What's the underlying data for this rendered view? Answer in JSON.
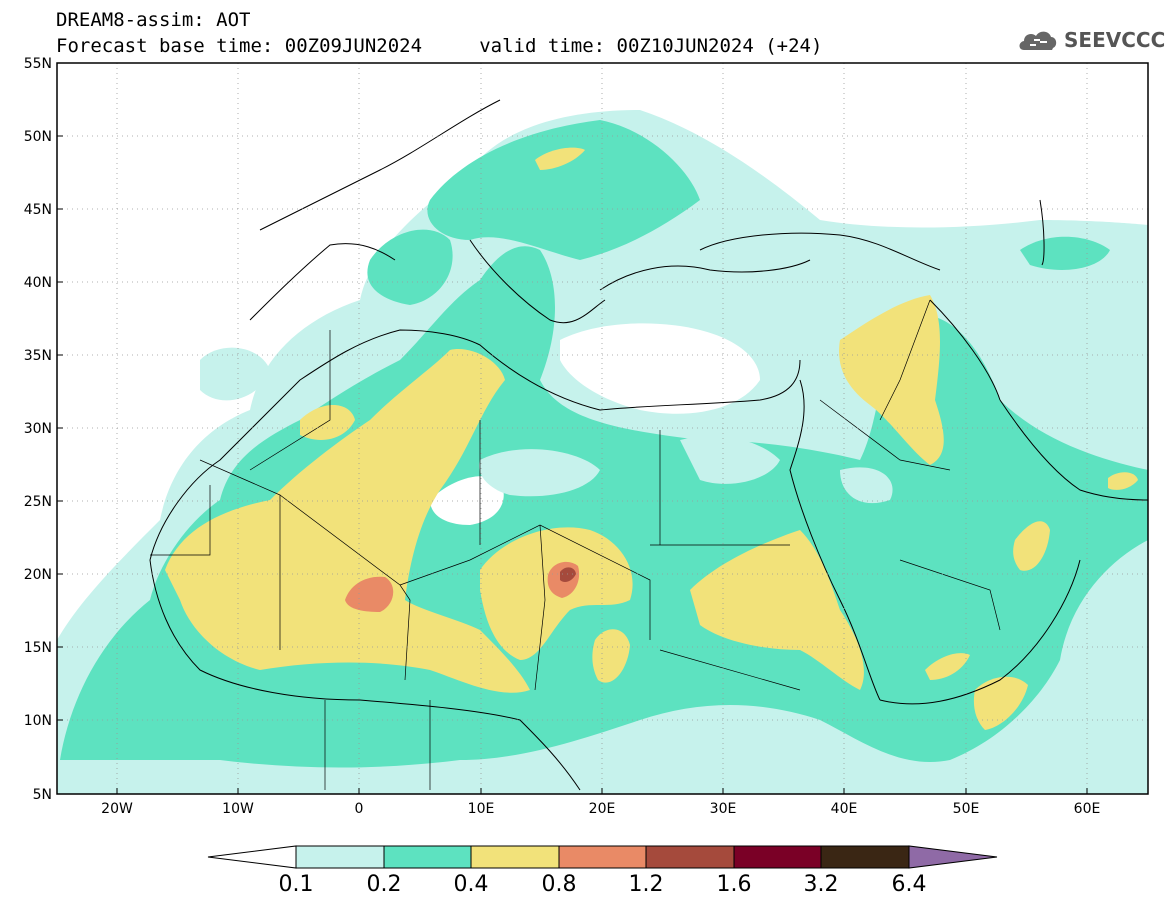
{
  "title": {
    "line1": "DREAM8-assim: AOT",
    "line2": "Forecast base time: 00Z09JUN2024     valid time: 00Z10JUN2024 (+24)"
  },
  "logo": {
    "text": "SEEVCCC",
    "icon": "cloud-icon"
  },
  "map": {
    "lon_range": [
      -25,
      65
    ],
    "lat_range": [
      5,
      55
    ],
    "lon_ticks": [
      "20W",
      "10W",
      "0",
      "10E",
      "20E",
      "30E",
      "40E",
      "50E",
      "60E"
    ],
    "lat_ticks": [
      "55N",
      "50N",
      "45N",
      "40N",
      "35N",
      "30N",
      "25N",
      "20N",
      "15N",
      "10N",
      "5N"
    ],
    "grid": true
  },
  "colorbar": {
    "labels": [
      "0.1",
      "0.2",
      "0.4",
      "0.8",
      "1.2",
      "1.6",
      "3.2",
      "6.4"
    ],
    "colors": [
      "#ffffff",
      "#c6f2ec",
      "#5de2c0",
      "#f2e27a",
      "#e98a66",
      "#a54a3c",
      "#7a0026",
      "#3a2614",
      "#8f6aa6"
    ]
  }
}
